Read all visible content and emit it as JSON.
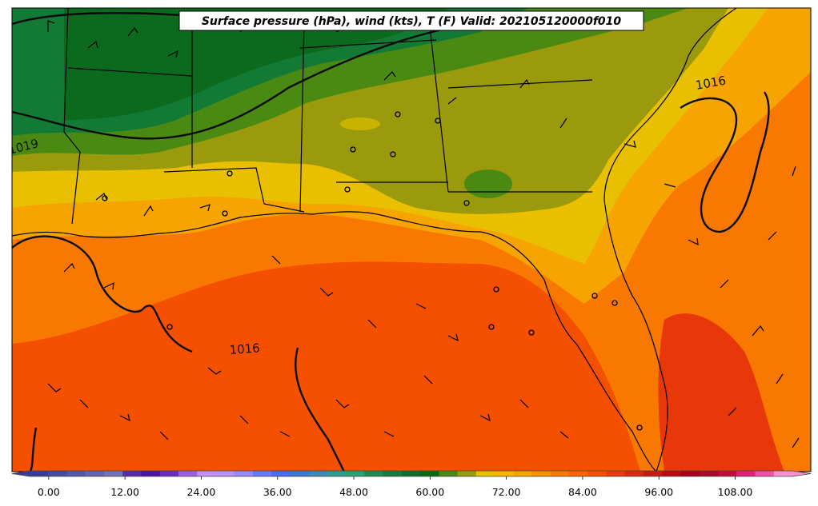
{
  "title": "Surface pressure (hPa), wind (kts), T (F) Valid: 202105120000f010",
  "isobar_labels": [
    "1016",
    "1016",
    "1019"
  ],
  "colorbar": {
    "tick_labels": [
      "0.00",
      "12.00",
      "24.00",
      "36.00",
      "48.00",
      "60.00",
      "72.00",
      "84.00",
      "96.00",
      "108.00"
    ],
    "range": [
      -3,
      117
    ],
    "step": 3,
    "extend": "both",
    "colors": [
      "#3a3a9a",
      "#48489e",
      "#5656a6",
      "#6464ae",
      "#7272b6",
      "#5a2aa8",
      "#4a14a6",
      "#6a2ec0",
      "#9a60e0",
      "#c490f0",
      "#b890f8",
      "#9a88f8",
      "#6a78f8",
      "#4a6cf0",
      "#3a78d0",
      "#3a8ab8",
      "#2e9a90",
      "#28a070",
      "#1e8a50",
      "#167a3c",
      "#0e6e2c",
      "#066a12",
      "#4a8a12",
      "#9a9a0e",
      "#e8c000",
      "#f8b400",
      "#f8a400",
      "#f89000",
      "#f87800",
      "#f86400",
      "#f45000",
      "#e83c0c",
      "#d82a10",
      "#c81a10",
      "#b80a10",
      "#a8001a",
      "#a80a2a",
      "#c0103a",
      "#e0207a",
      "#f050a8",
      "#f890d0"
    ]
  },
  "temperature_palette": {
    "cold_north": "#0f6e2a",
    "green": "#127a34",
    "light_green": "#4a8a12",
    "olive": "#9a9a0c",
    "yellow": "#e8c000",
    "light_orange": "#f8a400",
    "orange": "#f87800",
    "red_orange": "#f45000",
    "deep_red_orange": "#e8380a"
  }
}
